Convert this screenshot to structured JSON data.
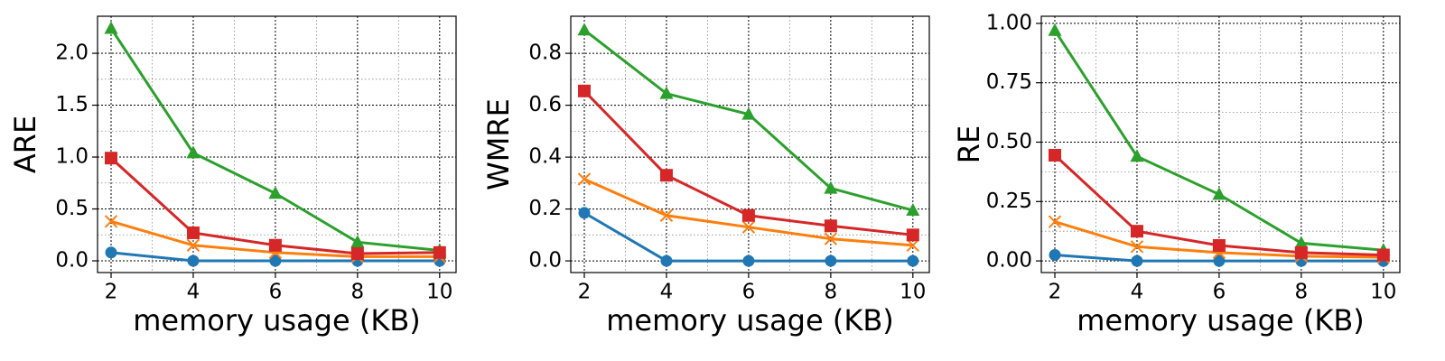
{
  "chart_data": [
    {
      "type": "line",
      "x": [
        2,
        4,
        6,
        8,
        10
      ],
      "xlabel": "memory usage (KB)",
      "ylabel": "ARE",
      "xlim": [
        1.67,
        10.4
      ],
      "ylim": [
        -0.113,
        2.357
      ],
      "xticks": [
        2,
        4,
        6,
        8,
        10
      ],
      "yticks": [
        {
          "value": 0,
          "label": "0.0"
        },
        0.5,
        {
          "value": 1,
          "label": "1.0"
        },
        1.5,
        {
          "value": 2,
          "label": "2.0"
        }
      ],
      "grid": true,
      "series": [
        {
          "color": "#1f77b4",
          "marker": "circle",
          "values": [
            0.08,
            0.0,
            0.0,
            0.0,
            0.0
          ]
        },
        {
          "color": "#ff7f0e",
          "marker": "x",
          "values": [
            0.38,
            0.15,
            0.08,
            0.04,
            0.04
          ]
        },
        {
          "color": "#2ca02c",
          "marker": "triangle",
          "values": [
            2.24,
            1.04,
            0.65,
            0.18,
            0.1
          ]
        },
        {
          "color": "#d62728",
          "marker": "square",
          "values": [
            0.99,
            0.27,
            0.15,
            0.07,
            0.08
          ]
        }
      ]
    },
    {
      "type": "line",
      "x": [
        2,
        4,
        6,
        8,
        10
      ],
      "xlabel": "memory usage (KB)",
      "ylabel": "WMRE",
      "xlim": [
        1.67,
        10.4
      ],
      "ylim": [
        -0.045,
        0.943
      ],
      "xticks": [
        2,
        4,
        6,
        8,
        10
      ],
      "yticks": [
        {
          "value": 0,
          "label": "0.0"
        },
        0.2,
        0.4,
        0.6,
        0.8
      ],
      "grid": true,
      "series": [
        {
          "color": "#1f77b4",
          "marker": "circle",
          "values": [
            0.185,
            0.0,
            0.0,
            0.0,
            0.0
          ]
        },
        {
          "color": "#ff7f0e",
          "marker": "x",
          "values": [
            0.315,
            0.175,
            0.13,
            0.085,
            0.06
          ]
        },
        {
          "color": "#2ca02c",
          "marker": "triangle",
          "values": [
            0.89,
            0.645,
            0.565,
            0.28,
            0.195
          ]
        },
        {
          "color": "#d62728",
          "marker": "square",
          "values": [
            0.655,
            0.33,
            0.175,
            0.135,
            0.1
          ]
        }
      ]
    },
    {
      "type": "line",
      "x": [
        2,
        4,
        6,
        8,
        10
      ],
      "xlabel": "memory usage (KB)",
      "ylabel": "RE",
      "xlim": [
        1.67,
        10.4
      ],
      "ylim": [
        -0.049,
        1.03
      ],
      "xticks": [
        2,
        4,
        6,
        8,
        10
      ],
      "yticks": [
        {
          "value": 0,
          "label": "0.00"
        },
        0.25,
        {
          "value": 0.5,
          "label": "0.50"
        },
        0.75,
        {
          "value": 1,
          "label": "1.00"
        }
      ],
      "grid": true,
      "series": [
        {
          "color": "#1f77b4",
          "marker": "circle",
          "values": [
            0.025,
            0.0,
            0.0,
            0.0,
            0.0
          ]
        },
        {
          "color": "#ff7f0e",
          "marker": "x",
          "values": [
            0.165,
            0.06,
            0.035,
            0.02,
            0.015
          ]
        },
        {
          "color": "#2ca02c",
          "marker": "triangle",
          "values": [
            0.97,
            0.44,
            0.28,
            0.075,
            0.045
          ]
        },
        {
          "color": "#d62728",
          "marker": "square",
          "values": [
            0.445,
            0.125,
            0.065,
            0.035,
            0.025
          ]
        }
      ]
    }
  ]
}
